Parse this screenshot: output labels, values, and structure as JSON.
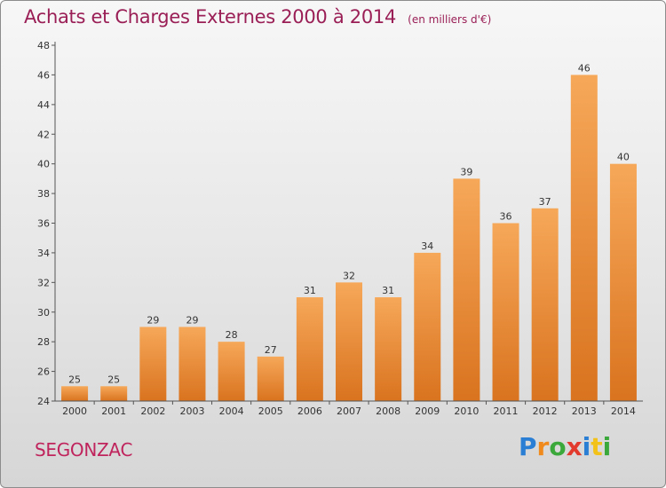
{
  "header": {
    "title": "Achats et Charges Externes 2000 à 2014",
    "subtitle": "(en milliers d'€)"
  },
  "footer": {
    "city": "SEGONZAC",
    "logo_text": "Proxiti",
    "logo_colors": [
      "#2a7fd4",
      "#f08a1c",
      "#3aa83a",
      "#e23b2e",
      "#2a7fd4",
      "#f2c21a",
      "#3aa83a"
    ]
  },
  "colors": {
    "bar_light": "#f6a859",
    "bar_dark": "#d9731f",
    "title": "#9a1f56",
    "city": "#c0245c"
  },
  "chart_data": {
    "type": "bar",
    "title": "Achats et Charges Externes 2000 à 2014",
    "subtitle": "(en milliers d'€)",
    "xlabel": "",
    "ylabel": "",
    "categories": [
      "2000",
      "2001",
      "2002",
      "2003",
      "2004",
      "2005",
      "2006",
      "2007",
      "2008",
      "2009",
      "2010",
      "2011",
      "2012",
      "2013",
      "2014"
    ],
    "values": [
      25,
      25,
      29,
      29,
      28,
      27,
      31,
      32,
      31,
      34,
      39,
      36,
      37,
      46,
      40
    ],
    "ylim": [
      24,
      48
    ],
    "yticks": [
      24,
      26,
      28,
      30,
      32,
      34,
      36,
      38,
      40,
      42,
      44,
      46,
      48
    ],
    "grid": false,
    "legend": "none",
    "data_labels": true
  }
}
